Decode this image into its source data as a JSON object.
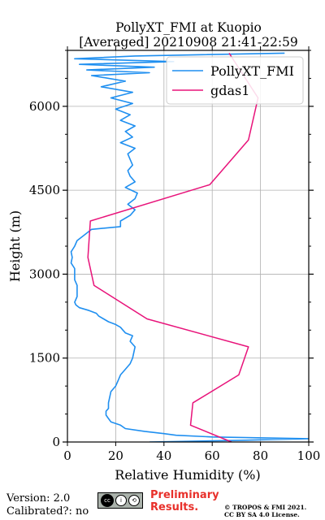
{
  "chart_data": {
    "type": "line",
    "title": "PollyXT_FMI at Kuopio",
    "subtitle": "[Averaged] 20210908 21:41-22:59",
    "xlabel": "Relative Humidity (%)",
    "ylabel": "Height (m)",
    "xlim": [
      0,
      100
    ],
    "ylim": [
      0,
      7000
    ],
    "xticks": [
      0,
      20,
      40,
      60,
      80,
      100
    ],
    "yticks": [
      0,
      1500,
      3000,
      4500,
      6000
    ],
    "grid": true,
    "legend_position": "top-right",
    "series": [
      {
        "name": "PollyXT_FMI",
        "color": "#1f8ff0",
        "profile": [
          [
            0,
            34
          ],
          [
            30,
            72
          ],
          [
            60,
            100
          ],
          [
            90,
            60
          ],
          [
            120,
            45
          ],
          [
            150,
            40
          ],
          [
            190,
            32
          ],
          [
            240,
            24
          ],
          [
            300,
            22
          ],
          [
            360,
            18
          ],
          [
            420,
            17
          ],
          [
            480,
            16
          ],
          [
            550,
            16
          ],
          [
            600,
            17
          ],
          [
            700,
            17
          ],
          [
            800,
            17.5
          ],
          [
            900,
            18
          ],
          [
            1000,
            20
          ],
          [
            1100,
            21
          ],
          [
            1200,
            22
          ],
          [
            1300,
            24
          ],
          [
            1400,
            26
          ],
          [
            1500,
            27
          ],
          [
            1600,
            27.5
          ],
          [
            1700,
            28
          ],
          [
            1800,
            26
          ],
          [
            1900,
            27
          ],
          [
            1950,
            24
          ],
          [
            2000,
            23
          ],
          [
            2050,
            22
          ],
          [
            2100,
            20
          ],
          [
            2150,
            17
          ],
          [
            2200,
            15
          ],
          [
            2250,
            13
          ],
          [
            2300,
            12
          ],
          [
            2350,
            9
          ],
          [
            2400,
            5
          ],
          [
            2450,
            3.5
          ],
          [
            2500,
            3
          ],
          [
            2600,
            4
          ],
          [
            2700,
            4
          ],
          [
            2800,
            4
          ],
          [
            2900,
            3
          ],
          [
            3000,
            3
          ],
          [
            3100,
            3
          ],
          [
            3200,
            1.5
          ],
          [
            3300,
            2
          ],
          [
            3400,
            1.5
          ],
          [
            3500,
            3
          ],
          [
            3600,
            4
          ],
          [
            3700,
            7
          ],
          [
            3800,
            10
          ],
          [
            3850,
            22
          ],
          [
            3950,
            22
          ],
          [
            4050,
            26
          ],
          [
            4150,
            28
          ],
          [
            4250,
            25
          ],
          [
            4350,
            28
          ],
          [
            4450,
            29
          ],
          [
            4550,
            24
          ],
          [
            4650,
            28
          ],
          [
            4750,
            26
          ],
          [
            4850,
            25
          ],
          [
            4950,
            27
          ],
          [
            5050,
            26
          ],
          [
            5150,
            25
          ],
          [
            5250,
            28
          ],
          [
            5350,
            22
          ],
          [
            5450,
            27
          ],
          [
            5550,
            24
          ],
          [
            5650,
            28
          ],
          [
            5750,
            22
          ],
          [
            5850,
            26
          ],
          [
            5950,
            20
          ],
          [
            6050,
            27
          ],
          [
            6150,
            18
          ],
          [
            6250,
            27
          ],
          [
            6350,
            14
          ],
          [
            6450,
            24
          ],
          [
            6550,
            10
          ],
          [
            6600,
            34
          ],
          [
            6650,
            8
          ],
          [
            6700,
            36
          ],
          [
            6750,
            5
          ],
          [
            6800,
            44
          ],
          [
            6850,
            3
          ],
          [
            6900,
            28
          ],
          [
            6950,
            90
          ]
        ]
      },
      {
        "name": "gdas1",
        "color": "#e8137a",
        "profile": [
          [
            0,
            68
          ],
          [
            300,
            51
          ],
          [
            700,
            52
          ],
          [
            1200,
            71
          ],
          [
            1700,
            75
          ],
          [
            2200,
            33
          ],
          [
            2800,
            11
          ],
          [
            3300,
            8.5
          ],
          [
            3950,
            9.5
          ],
          [
            4600,
            59
          ],
          [
            5400,
            75
          ],
          [
            6150,
            79
          ],
          [
            6950,
            67
          ]
        ]
      }
    ]
  },
  "footer": {
    "version": "Version: 2.0",
    "calibrated": "Calibrated?: no",
    "preliminary_line1": "Preliminary",
    "preliminary_line2": "Results.",
    "license_line1": "© TROPOS & FMI 2021.",
    "license_line2": "CC BY SA 4.0 License."
  }
}
